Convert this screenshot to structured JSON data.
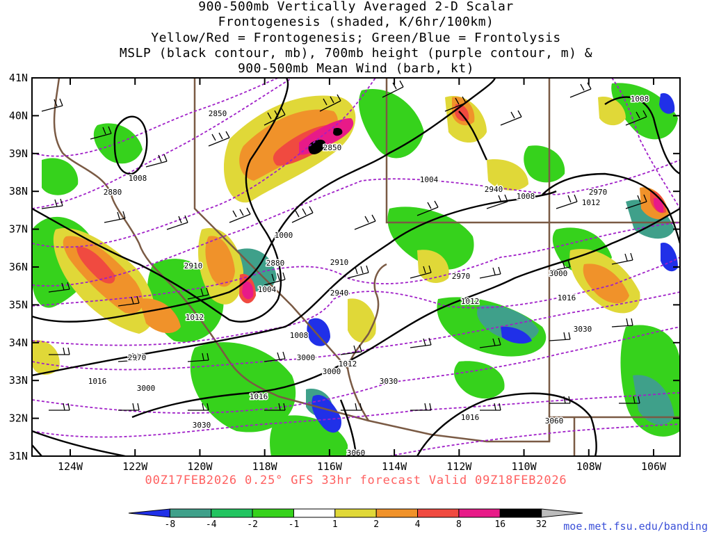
{
  "title_lines": [
    "900-500mb Vertically Averaged 2-D Scalar",
    "Frontogenesis (shaded, K/6hr/100km)",
    "Yellow/Red = Frontogenesis;  Green/Blue = Frontolysis",
    "MSLP (black contour, mb), 700mb height (purple contour, m) &",
    "900-500mb Mean Wind (barb, kt)"
  ],
  "lat_labels": [
    "41N",
    "40N",
    "39N",
    "38N",
    "37N",
    "36N",
    "35N",
    "34N",
    "33N",
    "32N",
    "31N"
  ],
  "lon_labels": [
    "124W",
    "122W",
    "120W",
    "118W",
    "116W",
    "114W",
    "112W",
    "110W",
    "108W",
    "106W"
  ],
  "valid_text": "00Z17FEB2026 0.25° GFS 33hr forecast Valid 09Z18FEB2026",
  "credit": "moe.met.fsu.edu/banding",
  "colorbar": {
    "labels": [
      "-8",
      "-4",
      "-2",
      "-1",
      "1",
      "2",
      "4",
      "8",
      "16",
      "32"
    ],
    "colors": [
      "#2030e8",
      "#3fa08a",
      "#22c460",
      "#36d21c",
      "#ffffff",
      "#e0d838",
      "#f0922a",
      "#f04a40",
      "#e81a88",
      "#000000",
      "#bcbcbc"
    ]
  },
  "mslp_labels": [
    "1008",
    "1008",
    "1004",
    "1000",
    "1004",
    "1012",
    "1008",
    "1016",
    "1012",
    "1016",
    "1016",
    "1004",
    "1008",
    "1012",
    "1012",
    "1016",
    "1016"
  ],
  "height_labels": [
    "2850",
    "2850",
    "2880",
    "2910",
    "2880",
    "2910",
    "2940",
    "2940",
    "2970",
    "2970",
    "2970",
    "3000",
    "3000",
    "3000",
    "3030",
    "3030",
    "3030",
    "3060",
    "3060"
  ],
  "colors": {
    "mslp": "#000000",
    "height": "#a020c8",
    "borders": "#7a5a44",
    "frame": "#000000",
    "valid_text": "#ff6060",
    "credit": "#3a4fd8"
  }
}
